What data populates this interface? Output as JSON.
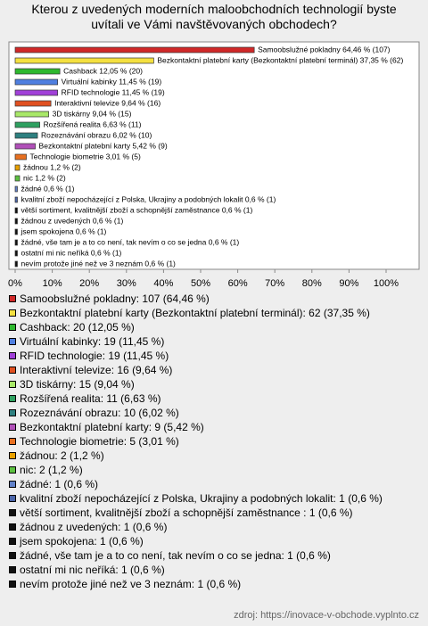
{
  "chart_data": {
    "type": "hbar",
    "title": "Kterou z uvedených moderních maloobchodních technologií byste uvítali ve Vámi navštěvovaných obchodech?",
    "xlim": [
      0,
      100
    ],
    "xticks": [
      {
        "value": 0,
        "label": "0%"
      },
      {
        "value": 10,
        "label": "10%"
      },
      {
        "value": 20,
        "label": "20%"
      },
      {
        "value": 30,
        "label": "30%"
      },
      {
        "value": 40,
        "label": "40%"
      },
      {
        "value": 50,
        "label": "50%"
      },
      {
        "value": 60,
        "label": "60%"
      },
      {
        "value": 70,
        "label": "70%"
      },
      {
        "value": 80,
        "label": "80%"
      },
      {
        "value": 90,
        "label": "90%"
      },
      {
        "value": 100,
        "label": "100%"
      }
    ],
    "values": [
      64.46,
      37.35,
      12.05,
      11.45,
      11.45,
      9.64,
      9.04,
      6.63,
      6.02,
      5.42,
      3.01,
      1.2,
      1.2,
      0.6,
      0.6,
      0.6,
      0.6,
      0.6,
      0.6,
      0.6,
      0.6
    ],
    "value_labels": [
      "Samoobslužné pokladny 64,46 % (107)",
      "Bezkontaktní platební karty (Bezkontaktní platební terminál) 37,35 % (62)",
      "Cashback 12,05 % (20)",
      "Virtuální kabinky 11,45 % (19)",
      "RFID technologie 11,45 % (19)",
      "Interaktivní televize 9,64 % (16)",
      "3D tiskárny 9,04 % (15)",
      "Rozšířená realita 6,63 % (11)",
      "Rozeznávání obrazu 6,02 % (10)",
      "Bezkontaktní platební karty 5,42 % (9)",
      "Technologie biometrie 3,01 % (5)",
      "žádnou 1,2 % (2)",
      "nic 1,2 % (2)",
      "žádné 0,6 % (1)",
      "kvalitní zboží nepocházející z Polska, Ukrajiny a podobných lokalit 0,6 % (1)",
      "větší sortiment, kvalitnější zboží a schopnější zaměstnance  0,6 % (1)",
      "žádnou z uvedených 0,6 % (1)",
      "jsem spokojena 0,6 % (1)",
      "žádné, vše tam je a to co není, tak nevím o co se jedna 0,6 % (1)",
      "ostatní mi nic neříká 0,6 % (1)",
      "nevím protože jiné než ve 3 neznám 0,6 % (1)"
    ],
    "legend_labels": [
      "Samoobslužné pokladny: 107 (64,46 %)",
      "Bezkontaktní platební karty (Bezkontaktní platební terminál): 62 (37,35 %)",
      "Cashback: 20 (12,05 %)",
      "Virtuální kabinky: 19 (11,45 %)",
      "RFID technologie: 19 (11,45 %)",
      "Interaktivní televize: 16 (9,64 %)",
      "3D tiskárny: 15 (9,04 %)",
      "Rozšířená realita: 11 (6,63 %)",
      "Rozeznávání obrazu: 10 (6,02 %)",
      "Bezkontaktní platební karty: 9 (5,42 %)",
      "Technologie biometrie: 5 (3,01 %)",
      "žádnou: 2 (1,2 %)",
      "nic: 2 (1,2 %)",
      "žádné: 1 (0,6 %)",
      "kvalitní zboží nepocházející z Polska, Ukrajiny a podobných lokalit: 1 (0,6 %)",
      "větší sortiment, kvalitnější zboží a schopnější zaměstnance : 1 (0,6 %)",
      "žádnou z uvedených: 1 (0,6 %)",
      "jsem spokojena: 1 (0,6 %)",
      "žádné, vše tam je a to co není, tak nevím o co se jedna: 1 (0,6 %)",
      "ostatní mi nic neříká: 1 (0,6 %)",
      "nevím protože jiné než ve 3 neznám: 1 (0,6 %)"
    ],
    "colors": [
      "#d02828",
      "#f4e040",
      "#2eb82e",
      "#4f7fe0",
      "#a040d8",
      "#e05020",
      "#a8e868",
      "#2ea060",
      "#2e8080",
      "#b050b8",
      "#e87020",
      "#e8a000",
      "#5cc040",
      "#6080c8",
      "#4a64a8",
      "#111111",
      "#111111",
      "#111111",
      "#111111",
      "#111111",
      "#111111"
    ],
    "source": "zdroj: https://inovace-v-obchode.vyplnto.cz"
  }
}
